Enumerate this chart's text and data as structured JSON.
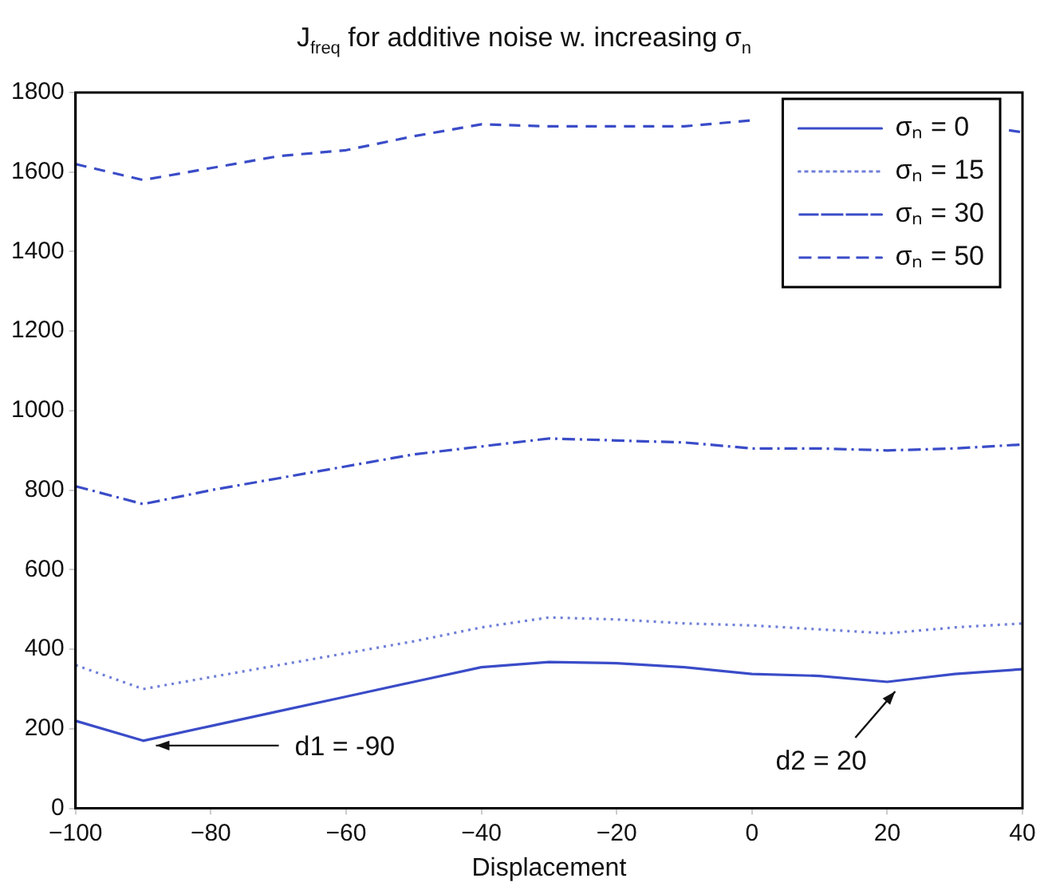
{
  "chart_data": {
    "type": "line",
    "title": "J$_{freq}$ for additive noise w. increasing σ$_{n}$",
    "xlabel": "Displacement",
    "x": [
      -100,
      -90,
      -80,
      -70,
      -60,
      -50,
      -40,
      -30,
      -20,
      -10,
      0,
      10,
      20,
      30,
      40
    ],
    "series": [
      {
        "name": "σₙ = 0",
        "color": "#3a4cc8",
        "line_style": "solid",
        "values": [
          220,
          170,
          207,
          244,
          281,
          318,
          355,
          368,
          365,
          355,
          338,
          333,
          318,
          338,
          350
        ]
      },
      {
        "name": "σₙ = 15",
        "color": "#6f7fd8",
        "line_style": "dotted",
        "values": [
          360,
          300,
          330,
          360,
          390,
          420,
          455,
          480,
          475,
          465,
          460,
          450,
          440,
          455,
          465
        ]
      },
      {
        "name": "σₙ = 30",
        "color": "#3a4cc8",
        "line_style": "dashdot",
        "values": [
          810,
          765,
          800,
          830,
          860,
          890,
          910,
          930,
          925,
          920,
          905,
          905,
          900,
          905,
          915
        ]
      },
      {
        "name": "σₙ = 50",
        "color": "#3a4cc8",
        "line_style": "dashed",
        "x": [
          -100,
          -90,
          -80,
          -70,
          -60,
          -50,
          -40,
          -30,
          -20,
          -10,
          0,
          10,
          20,
          38,
          40
        ],
        "values": [
          1620,
          1580,
          1610,
          1640,
          1655,
          1690,
          1720,
          1715,
          1715,
          1715,
          1730,
          null,
          null,
          1705,
          1700
        ]
      }
    ],
    "xlim": [
      -100,
      40
    ],
    "xticks": [
      -100,
      -80,
      -60,
      -40,
      -20,
      0,
      20,
      40
    ],
    "ylim": [
      0,
      1800
    ],
    "yticks": [
      0,
      200,
      400,
      600,
      800,
      1000,
      1200,
      1400,
      1600,
      1800
    ],
    "grid": false,
    "legend": "top right",
    "marker": "none",
    "annotations": [
      {
        "text": "d1 = -90",
        "x": -90,
        "y": 170
      },
      {
        "text": "d2 = 20",
        "x": 20,
        "y": 318
      }
    ]
  }
}
